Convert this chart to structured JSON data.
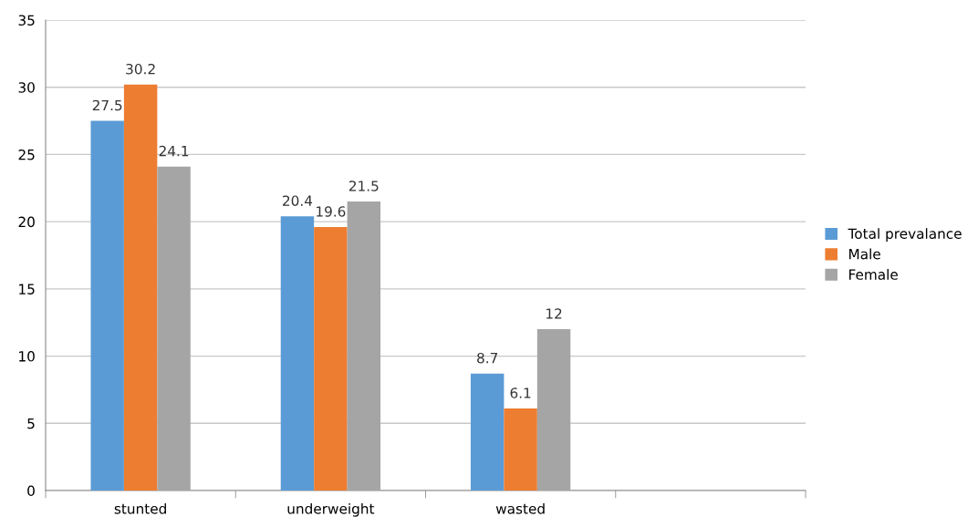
{
  "chart_data": {
    "type": "bar",
    "categories": [
      "stunted",
      "underweight",
      "wasted",
      null
    ],
    "series": [
      {
        "name": "Total prevalance",
        "color": "#5b9bd5",
        "values": [
          27.5,
          20.4,
          8.7,
          null
        ]
      },
      {
        "name": "Male",
        "color": "#ed7d31",
        "values": [
          30.2,
          19.6,
          6.1,
          null
        ]
      },
      {
        "name": "Female",
        "color": "#a5a5a5",
        "values": [
          24.1,
          21.5,
          12,
          null
        ]
      }
    ],
    "ylim": [
      0,
      35
    ],
    "yticks": [
      0,
      5,
      10,
      15,
      20,
      25,
      30,
      35
    ],
    "grid": "y",
    "legend": "right",
    "data_labels": true
  }
}
